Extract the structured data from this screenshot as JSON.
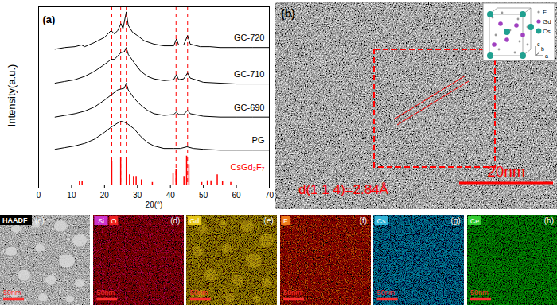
{
  "chart_data": {
    "type": "line",
    "panel_label": "(a)",
    "xlabel": "2θ(°)",
    "ylabel": "Intensity(a.u.)",
    "xlim": [
      0,
      70
    ],
    "xticks": [
      0,
      10,
      20,
      30,
      40,
      50,
      60,
      70
    ],
    "ylim": [
      0,
      105
    ],
    "tick_labels": "x",
    "series": [
      {
        "name": "GC-720",
        "color": "#000000",
        "x": [
          5,
          8,
          11,
          13,
          14,
          17,
          20,
          22,
          23,
          24,
          25,
          25.6,
          26.6,
          27.2,
          28.5,
          30,
          32,
          35,
          38,
          41,
          41.8,
          42.5,
          44,
          45.2,
          46,
          49,
          52,
          55,
          60,
          65,
          70
        ],
        "values": [
          80,
          81,
          81.5,
          82.5,
          81.5,
          84,
          87,
          91,
          89,
          91,
          95,
          92,
          102,
          94,
          90,
          88,
          85,
          83,
          82,
          82,
          86,
          82.5,
          82.5,
          88,
          83,
          81.5,
          81.5,
          81,
          81,
          81,
          81
        ]
      },
      {
        "name": "GC-710",
        "color": "#000000",
        "x": [
          5,
          8,
          11,
          14,
          17,
          20,
          22,
          23,
          24,
          25,
          26,
          26.6,
          27.2,
          29,
          31,
          33,
          35,
          38,
          41,
          41.8,
          42.5,
          44,
          45.2,
          46,
          50,
          55,
          60,
          65,
          70
        ],
        "values": [
          60,
          61,
          62,
          64,
          67,
          71,
          74,
          74,
          76,
          78,
          78.5,
          81,
          77,
          72,
          67,
          64,
          62.5,
          61.5,
          62,
          65,
          62,
          62.5,
          66,
          63,
          60.5,
          60,
          59.5,
          59.5,
          59.5
        ]
      },
      {
        "name": "GC-690",
        "color": "#000000",
        "x": [
          5,
          8,
          11,
          14,
          17,
          20,
          22,
          24,
          25,
          26,
          26.6,
          27.2,
          29,
          31,
          33,
          35,
          38,
          41,
          41.8,
          42.5,
          44,
          45.2,
          46,
          50,
          55,
          60,
          65,
          70
        ],
        "values": [
          40,
          41,
          42,
          43.5,
          46,
          50,
          53,
          56,
          56.5,
          57,
          60,
          56,
          51,
          47,
          44,
          42,
          41,
          41.5,
          43,
          41.5,
          41.5,
          44,
          42,
          40.5,
          40,
          40,
          40,
          40
        ]
      },
      {
        "name": "PG",
        "color": "#000000",
        "x": [
          5,
          8,
          11,
          14,
          17,
          20,
          22,
          24,
          25,
          26,
          27,
          29,
          31,
          33,
          35,
          38,
          41,
          43,
          45,
          47,
          50,
          55,
          60,
          65,
          70
        ],
        "values": [
          21,
          22,
          23,
          24.5,
          27,
          31,
          34,
          36.5,
          37.5,
          37,
          36,
          33,
          28.5,
          25,
          23,
          21.5,
          21.5,
          21.5,
          22.5,
          21.5,
          21,
          20.5,
          20.5,
          20.5,
          20.5
        ]
      },
      {
        "name": "CsGd₂F₇",
        "color": "#ff0000",
        "type": "bar",
        "x": [
          12.4,
          13.2,
          22.2,
          24.9,
          26.6,
          27.6,
          28.8,
          29.6,
          31.2,
          34.5,
          40.8,
          41.7,
          44.1,
          44.9,
          45.6,
          49.5,
          51.2,
          52.3,
          54.2,
          55.8,
          58.3
        ],
        "values": [
          2,
          2,
          14,
          16,
          16,
          6,
          5,
          5,
          3,
          1.5,
          7,
          9,
          5,
          17,
          12,
          1.5,
          2.5,
          2.5,
          6,
          2,
          1.5
        ]
      }
    ],
    "dashed_lines": {
      "values": [
        22.2,
        24.9,
        26.6,
        41.7,
        45.2
      ],
      "color": "#ff0000",
      "line_style": "dashed"
    }
  },
  "image_panels": [
    {
      "label": "(b)",
      "annotation": "d(1 1 4)=2.84Å",
      "scale_bar": "20nm",
      "color": "#ff0000",
      "inset_legend": [
        {
          "name": "F",
          "color": "#9a9a9a"
        },
        {
          "name": "Gd",
          "color": "#a040c0"
        },
        {
          "name": "Cs",
          "color": "#20a090"
        }
      ],
      "inset_axes": [
        "c",
        "a",
        "b"
      ]
    },
    {
      "label": "(c)",
      "tag": "HAADF",
      "scale_bar": "50nm",
      "color": "#d8d8d8"
    },
    {
      "label": "(d)",
      "elements": [
        {
          "name": "Si",
          "color": "#cc33cc"
        },
        {
          "name": "O",
          "color": "#ee2222"
        }
      ],
      "scale_bar": "50nm"
    },
    {
      "label": "(e)",
      "elements": [
        {
          "name": "Gd",
          "color": "#e6c619"
        }
      ],
      "scale_bar": "50nm"
    },
    {
      "label": "(f)",
      "elements": [
        {
          "name": "F",
          "color": "#f07a1a"
        }
      ],
      "scale_bar": "50nm"
    },
    {
      "label": "(g)",
      "elements": [
        {
          "name": "Cs",
          "color": "#33b5d9"
        }
      ],
      "scale_bar": "50nm"
    },
    {
      "label": "(h)",
      "elements": [
        {
          "name": "Ce",
          "color": "#33cc33"
        }
      ],
      "scale_bar": "50nm"
    }
  ]
}
